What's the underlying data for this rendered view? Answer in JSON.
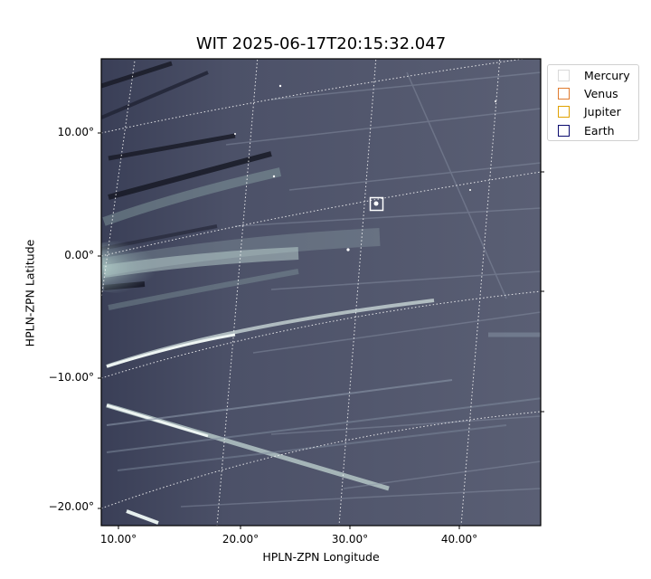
{
  "title": "WIT 2025-06-17T20:15:32.047",
  "x_axis": {
    "label": "HPLN-ZPN Longitude",
    "ticks": [
      "10.00°",
      "20.00°",
      "30.00°",
      "40.00°"
    ]
  },
  "y_axis": {
    "label": "HPLN-ZPN Latitude",
    "ticks": [
      "10.00°",
      "0.00°",
      "−10.00°",
      "−20.00°"
    ]
  },
  "legend": {
    "placement": "top-right (outside)",
    "items": [
      {
        "label": "Mercury",
        "color": "#d9d9d9"
      },
      {
        "label": "Venus",
        "color": "#e07b2f"
      },
      {
        "label": "Jupiter",
        "color": "#e0a100"
      },
      {
        "label": "Earth",
        "color": "#0a0a6e"
      }
    ]
  },
  "image": {
    "colormap": "bone (grayscale-blue)",
    "grid": "dotted white coordinate grid",
    "marker": "white square box around a bright star-like object"
  }
}
